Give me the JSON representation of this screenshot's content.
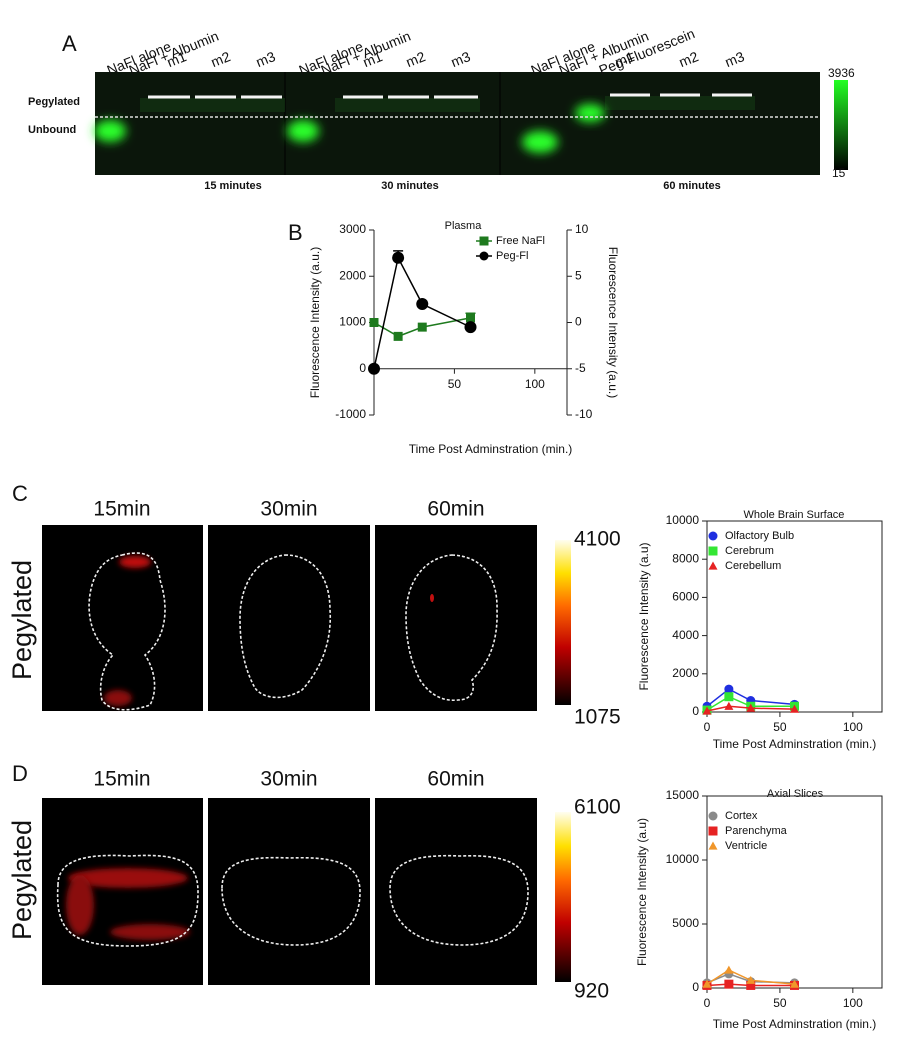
{
  "panel_a": {
    "letter": "A",
    "row_labels": [
      "Pegylated",
      "Unbound"
    ],
    "groups": [
      {
        "lanes": [
          "NaFl alone",
          "NaFl + Albumin",
          "m1",
          "m2",
          "m3"
        ],
        "time": "15 minutes"
      },
      {
        "lanes": [
          "NaFl alone",
          "NaFl + Albumin",
          "m1",
          "m2",
          "m3"
        ],
        "time": "30 minutes"
      },
      {
        "lanes": [
          "NaFl alone",
          "NaFl + Albumin",
          "Peg-Fluorescein",
          "m1",
          "m2",
          "m3"
        ],
        "time": "60 minutes"
      }
    ],
    "colorbar": [
      "3936",
      "15"
    ]
  },
  "panel_b": {
    "letter": "B"
  },
  "panel_c": {
    "letter": "C",
    "row_label": "Pegylated",
    "times": [
      "15min",
      "30min",
      "60min"
    ],
    "colorbar": [
      "4100",
      "1075"
    ]
  },
  "panel_d": {
    "letter": "D",
    "row_label": "Pegylated",
    "times": [
      "15min",
      "30min",
      "60min"
    ],
    "colorbar": [
      "6100",
      "920"
    ]
  },
  "chart_data": [
    {
      "type": "line",
      "title": "Plasma",
      "x": [
        0,
        15,
        30,
        60
      ],
      "xlim": [
        0,
        120
      ],
      "xticks": [
        50,
        100
      ],
      "ylim": [
        -1000,
        3000
      ],
      "yticks": [
        -1000,
        0,
        1000,
        2000,
        3000
      ],
      "y2lim": [
        -10,
        10
      ],
      "y2ticks": [
        -10,
        -5,
        0,
        5,
        10
      ],
      "ylabel": "Fluorescence Intensity (a.u.)",
      "y2label": "Fluorescence Intensity (a.u.)",
      "xlabel": "Time Post Adminstration (min.)",
      "series": [
        {
          "name": "Free NaFl",
          "color": "#1e7a1e",
          "marker": "square",
          "axis": "y2",
          "values": [
            0,
            -1.5,
            -0.5,
            0.5
          ],
          "errors": [
            null,
            null,
            null,
            0.5
          ]
        },
        {
          "name": "Peg-Fl",
          "color": "#000000",
          "marker": "circle",
          "values": [
            0,
            2400,
            1400,
            900
          ],
          "errors": [
            null,
            150,
            null,
            null
          ]
        }
      ]
    },
    {
      "type": "line",
      "title": "Whole Brain Surface",
      "x": [
        0,
        15,
        30,
        60
      ],
      "xlim": [
        0,
        120
      ],
      "xticks": [
        0,
        50,
        100
      ],
      "ylim": [
        0,
        10000
      ],
      "yticks": [
        0,
        2000,
        4000,
        6000,
        8000,
        10000
      ],
      "ylabel": "Fluorescence Intensity (a.u)",
      "xlabel": "Time Post Adminstration (min.)",
      "series": [
        {
          "name": "Olfactory Bulb",
          "color": "#1f2fe0",
          "marker": "circle",
          "values": [
            300,
            1200,
            600,
            400
          ]
        },
        {
          "name": "Cerebrum",
          "color": "#33e633",
          "marker": "square",
          "values": [
            100,
            800,
            300,
            300
          ]
        },
        {
          "name": "Cerebellum",
          "color": "#e62222",
          "marker": "triangle",
          "values": [
            50,
            300,
            200,
            150
          ]
        }
      ]
    },
    {
      "type": "line",
      "title": "Axial Slices",
      "x": [
        0,
        15,
        30,
        60
      ],
      "xlim": [
        0,
        120
      ],
      "xticks": [
        0,
        50,
        100
      ],
      "ylim": [
        0,
        15000
      ],
      "yticks": [
        0,
        5000,
        10000,
        15000
      ],
      "ylabel": "Fluorescence Intensity (a.u)",
      "xlabel": "Time Post Adminstration (min.)",
      "series": [
        {
          "name": "Cortex",
          "color": "#8a8a8a",
          "marker": "circle",
          "values": [
            400,
            1100,
            500,
            400
          ]
        },
        {
          "name": "Parenchyma",
          "color": "#e62222",
          "marker": "square",
          "values": [
            200,
            300,
            200,
            200
          ]
        },
        {
          "name": "Ventricle",
          "color": "#f0962a",
          "marker": "triangle",
          "values": [
            300,
            1400,
            600,
            300
          ]
        }
      ]
    }
  ]
}
